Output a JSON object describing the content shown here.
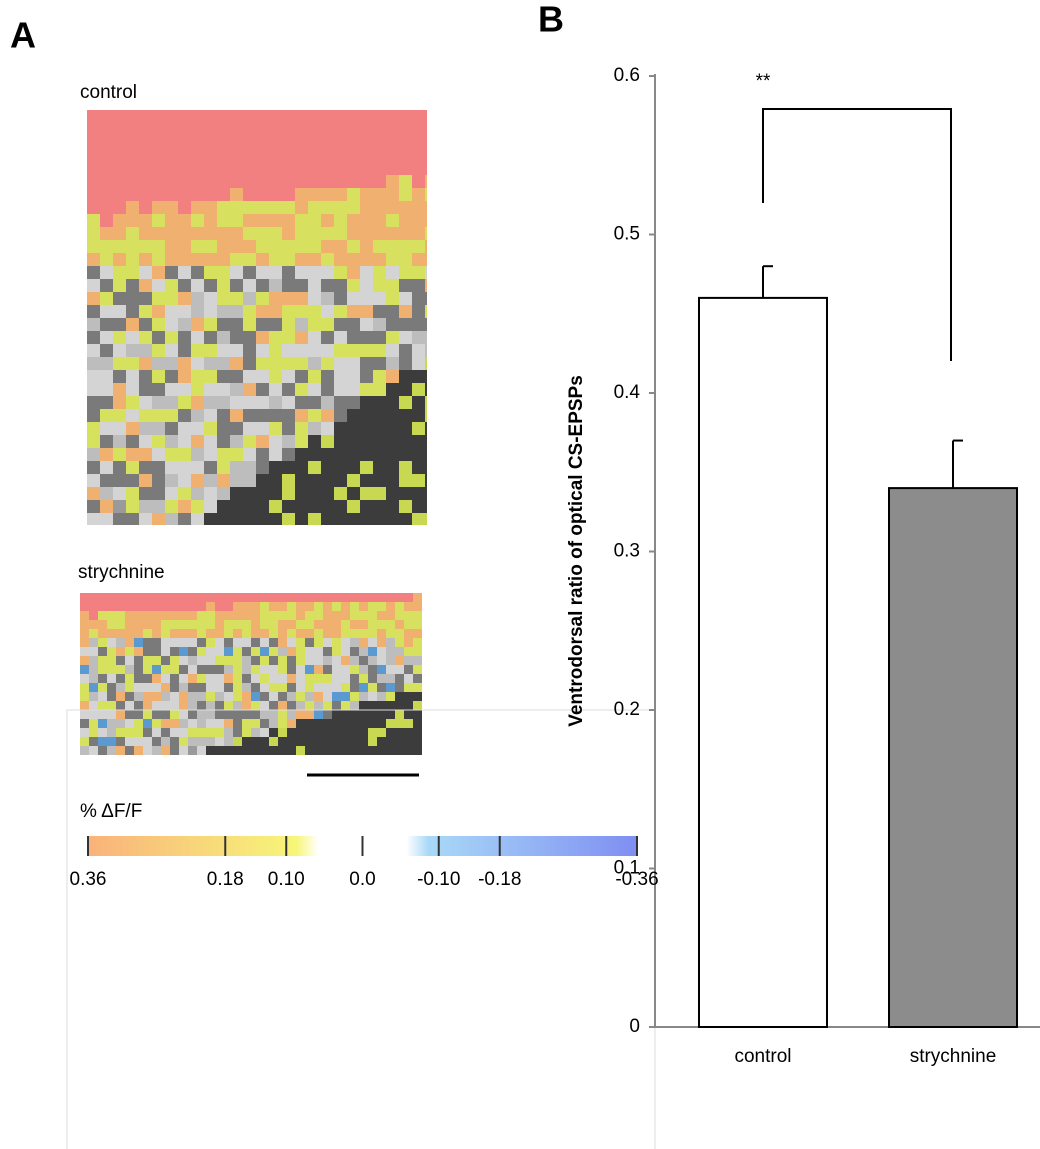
{
  "panel_a": {
    "label": "A",
    "images": [
      {
        "label": "control"
      },
      {
        "label": "strychnine"
      }
    ],
    "colorbar": {
      "title": "% ΔF/F",
      "lim": [
        0.36,
        -0.36
      ],
      "ticks": [
        0.36,
        0.18,
        {
          "value": 0.1,
          "label": "0.10"
        },
        {
          "value": 0,
          "label": "0.0"
        },
        {
          "value": -0.1,
          "label": "-0.10"
        },
        -0.18,
        -0.36
      ]
    }
  },
  "chart_data": {
    "type": "bar",
    "label": "B",
    "y_label": "Ventrodorsal ratio of optical CS-EPSPs",
    "annotation": "**",
    "categories": [
      "control",
      "strychnine"
    ],
    "values": [
      0.46,
      0.34
    ],
    "errors": [
      0.02,
      0.03
    ],
    "colors": [
      "#ffffff",
      "#8c8c8c"
    ],
    "ylim": [
      0,
      0.6
    ],
    "yticks": [
      0,
      0.1,
      0.2,
      0.3,
      0.4,
      0.5,
      0.6
    ]
  }
}
